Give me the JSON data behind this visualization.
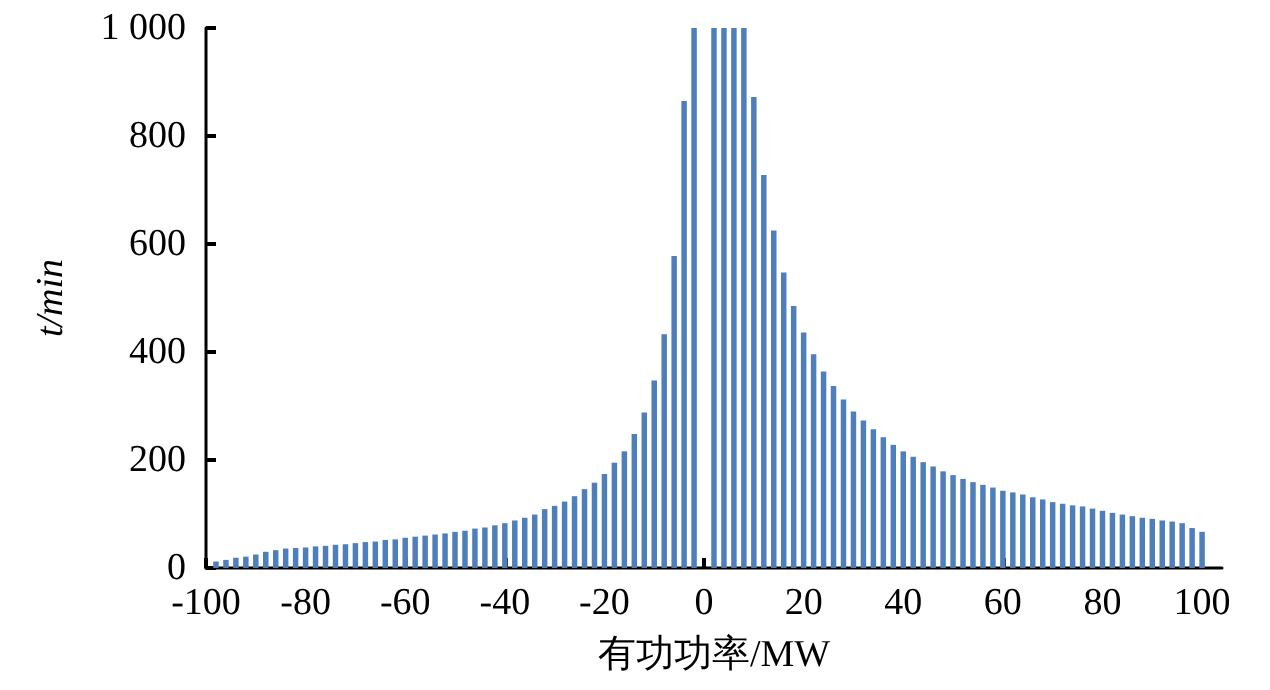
{
  "chart_data": {
    "type": "bar",
    "xlabel": "有功功率/MW",
    "ylabel": "t/min",
    "color": "#4f7fba",
    "x": [
      -98,
      -96,
      -94,
      -92,
      -90,
      -88,
      -86,
      -84,
      -82,
      -80,
      -78,
      -76,
      -74,
      -72,
      -70,
      -68,
      -66,
      -64,
      -62,
      -60,
      -58,
      -56,
      -54,
      -52,
      -50,
      -48,
      -46,
      -44,
      -42,
      -40,
      -38,
      -36,
      -34,
      -32,
      -30,
      -28,
      -26,
      -24,
      -22,
      -20,
      -18,
      -16,
      -14,
      -12,
      -10,
      -8,
      -6,
      -4,
      -2,
      2,
      4,
      6,
      8,
      10,
      12,
      14,
      16,
      18,
      20,
      22,
      24,
      26,
      28,
      30,
      32,
      34,
      36,
      38,
      40,
      42,
      44,
      46,
      48,
      50,
      52,
      54,
      56,
      58,
      60,
      62,
      64,
      66,
      68,
      70,
      72,
      74,
      76,
      78,
      80,
      82,
      84,
      86,
      88,
      90,
      92,
      94,
      96,
      98,
      100
    ],
    "values": [
      12,
      15,
      19,
      21,
      25,
      30,
      33,
      36,
      37,
      38,
      40,
      41,
      43,
      44,
      46,
      48,
      49,
      52,
      53,
      56,
      58,
      60,
      62,
      64,
      67,
      69,
      73,
      75,
      79,
      83,
      88,
      93,
      99,
      109,
      115,
      123,
      133,
      146,
      158,
      174,
      195,
      216,
      248,
      288,
      347,
      433,
      578,
      865,
      1000,
      1000,
      1000,
      1000,
      1000,
      872,
      728,
      625,
      547,
      485,
      436,
      396,
      364,
      337,
      312,
      290,
      273,
      257,
      242,
      228,
      216,
      206,
      196,
      188,
      179,
      172,
      165,
      159,
      154,
      149,
      143,
      140,
      136,
      131,
      127,
      122,
      119,
      116,
      114,
      110,
      106,
      102,
      99,
      96,
      93,
      91,
      88,
      86,
      83,
      74,
      67
    ],
    "xlim": [
      -100,
      104
    ],
    "xticks": [
      -100,
      -80,
      -60,
      -40,
      -20,
      0,
      20,
      40,
      60,
      80,
      100
    ],
    "ylim": [
      0,
      1000
    ],
    "yticks": [
      0,
      200,
      400,
      600,
      800,
      {
        "value": 1000,
        "label": "1 000"
      }
    ],
    "line_style": "solid"
  }
}
